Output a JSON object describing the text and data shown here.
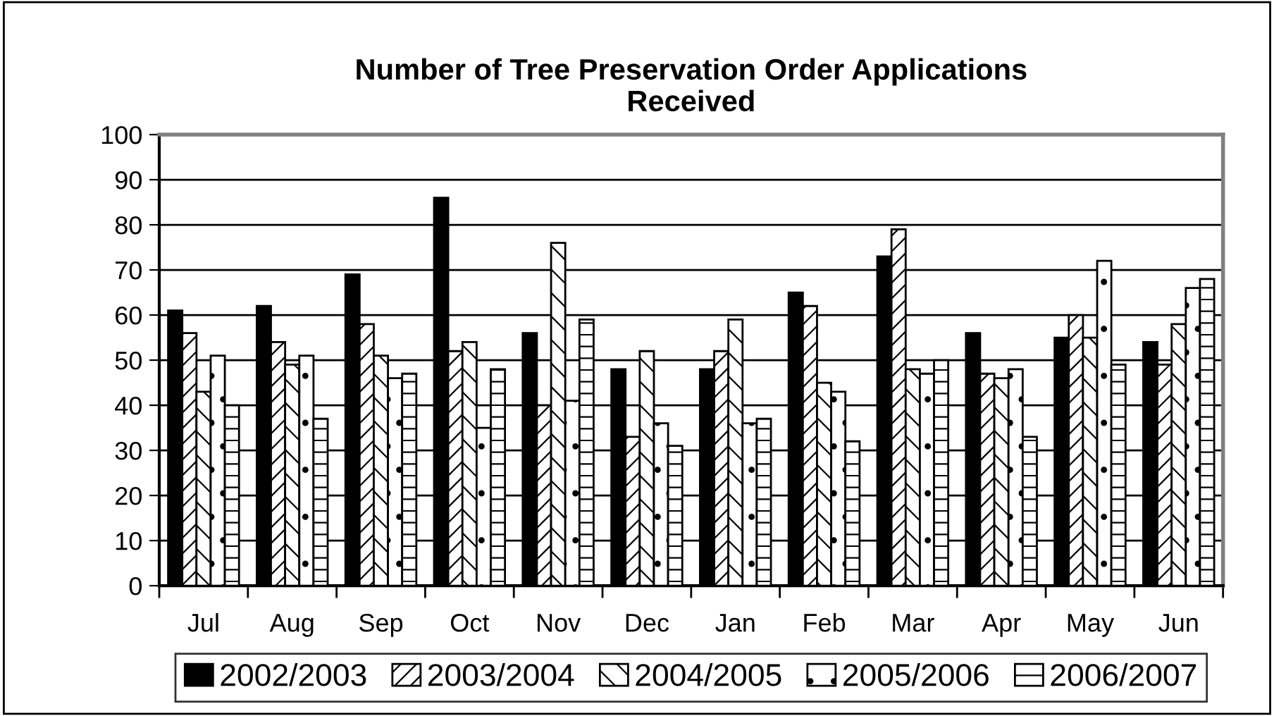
{
  "chart_data": {
    "type": "bar",
    "title": "Number of Tree Preservation Order Applications\nReceived",
    "categories": [
      "Jul",
      "Aug",
      "Sep",
      "Oct",
      "Nov",
      "Dec",
      "Jan",
      "Feb",
      "Mar",
      "Apr",
      "May",
      "Jun"
    ],
    "series": [
      {
        "name": "2002/2003",
        "color": "#000000",
        "values": [
          61,
          62,
          69,
          86,
          56,
          48,
          48,
          65,
          73,
          56,
          55,
          54
        ]
      },
      {
        "name": "2003/2004",
        "color": "#000000",
        "values": [
          56,
          54,
          58,
          52,
          40,
          33,
          52,
          62,
          79,
          47,
          60,
          49
        ]
      },
      {
        "name": "2004/2005",
        "color": "#000000",
        "values": [
          43,
          49,
          51,
          54,
          76,
          52,
          59,
          45,
          48,
          46,
          55,
          58
        ]
      },
      {
        "name": "2005/2006",
        "color": "#000000",
        "values": [
          51,
          51,
          46,
          35,
          41,
          36,
          36,
          43,
          47,
          48,
          72,
          66
        ]
      },
      {
        "name": "2006/2007",
        "color": "#000000",
        "values": [
          40,
          37,
          47,
          48,
          59,
          31,
          37,
          32,
          50,
          33,
          49,
          68
        ]
      }
    ],
    "ylim": [
      0,
      100
    ],
    "yticks": [
      0,
      10,
      20,
      30,
      40,
      50,
      60,
      70,
      80,
      90,
      100
    ],
    "grid": "y",
    "legend": "bottom"
  }
}
